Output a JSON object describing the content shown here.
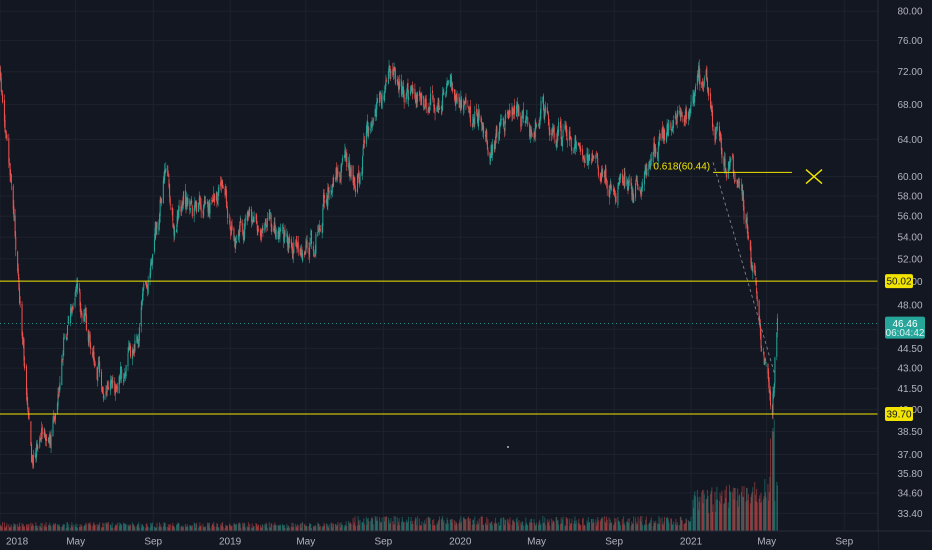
{
  "chart_data": {
    "type": "candlestick",
    "price_axis": {
      "scale": "log",
      "ticks": [
        80.0,
        76.0,
        72.0,
        68.0,
        64.0,
        60.0,
        58.0,
        56.0,
        54.0,
        52.0,
        50.0,
        48.0,
        46.0,
        44.5,
        43.0,
        41.5,
        40.0,
        38.5,
        37.0,
        35.8,
        34.6,
        33.4
      ],
      "labels": [
        "80.00",
        "76.00",
        "72.00",
        "68.00",
        "64.00",
        "60.00",
        "58.00",
        "56.00",
        "54.00",
        "52.00",
        "50.00",
        "48.00",
        "46.00",
        "44.50",
        "43.00",
        "41.50",
        "40.00",
        "38.50",
        "37.00",
        "35.80",
        "34.60",
        "33.40"
      ],
      "range": [
        32.9,
        81.0
      ]
    },
    "time_axis": {
      "ticks": [
        "2018-01-01",
        "2018-05-01",
        "2018-09-01",
        "2019-01-01",
        "2019-05-01",
        "2019-09-01",
        "2020-01-01",
        "2020-05-01",
        "2020-09-01",
        "2021-01-01",
        "2021-05-01",
        "2021-09-01"
      ],
      "labels": [
        "2018",
        "May",
        "Sep",
        "2019",
        "May",
        "Sep",
        "2020",
        "May",
        "Sep",
        "2021",
        "May",
        "Sep"
      ],
      "range": [
        "2018-01-01",
        "2021-10-15"
      ]
    },
    "price_path": [
      [
        "2018-01-01",
        71.0
      ],
      [
        "2018-01-20",
        58.0
      ],
      [
        "2018-02-08",
        44.0
      ],
      [
        "2018-02-20",
        36.0
      ],
      [
        "2018-03-08",
        39.5
      ],
      [
        "2018-03-22",
        37.5
      ],
      [
        "2018-04-12",
        45.0
      ],
      [
        "2018-05-01",
        50.0
      ],
      [
        "2018-05-25",
        45.0
      ],
      [
        "2018-06-14",
        41.0
      ],
      [
        "2018-07-01",
        41.5
      ],
      [
        "2018-07-25",
        43.5
      ],
      [
        "2018-08-10",
        46.0
      ],
      [
        "2018-09-01",
        53.0
      ],
      [
        "2018-09-15",
        58.0
      ],
      [
        "2018-09-22",
        61.0
      ],
      [
        "2018-10-05",
        55.0
      ],
      [
        "2018-10-20",
        58.0
      ],
      [
        "2018-11-10",
        56.0
      ],
      [
        "2018-12-01",
        57.5
      ],
      [
        "2018-12-20",
        59.0
      ],
      [
        "2019-01-10",
        54.0
      ],
      [
        "2019-02-01",
        56.0
      ],
      [
        "2019-03-01",
        55.0
      ],
      [
        "2019-04-01",
        53.5
      ],
      [
        "2019-05-01",
        52.5
      ],
      [
        "2019-05-15",
        53.5
      ],
      [
        "2019-06-01",
        58.0
      ],
      [
        "2019-07-01",
        62.0
      ],
      [
        "2019-07-20",
        59.0
      ],
      [
        "2019-08-10",
        66.0
      ],
      [
        "2019-08-25",
        68.5
      ],
      [
        "2019-09-15",
        71.5
      ],
      [
        "2019-10-01",
        69.5
      ],
      [
        "2019-11-01",
        68.0
      ],
      [
        "2019-12-01",
        69.0
      ],
      [
        "2019-12-20",
        70.5
      ],
      [
        "2020-01-15",
        66.0
      ],
      [
        "2020-02-01",
        67.0
      ],
      [
        "2020-02-20",
        62.5
      ],
      [
        "2020-03-15",
        66.0
      ],
      [
        "2020-04-01",
        67.5
      ],
      [
        "2020-04-20",
        65.0
      ],
      [
        "2020-05-10",
        68.0
      ],
      [
        "2020-06-01",
        65.0
      ],
      [
        "2020-07-01",
        64.0
      ],
      [
        "2020-08-01",
        61.5
      ],
      [
        "2020-09-01",
        58.5
      ],
      [
        "2020-09-15",
        59.5
      ],
      [
        "2020-10-01",
        58.0
      ],
      [
        "2020-10-20",
        60.5
      ],
      [
        "2020-11-05",
        63.0
      ],
      [
        "2020-12-01",
        65.0
      ],
      [
        "2021-01-01",
        68.0
      ],
      [
        "2021-01-15",
        71.5
      ],
      [
        "2021-01-25",
        72.5
      ],
      [
        "2021-02-05",
        66.0
      ],
      [
        "2021-02-25",
        61.5
      ],
      [
        "2021-03-10",
        60.5
      ],
      [
        "2021-03-25",
        57.0
      ],
      [
        "2021-04-05",
        53.0
      ],
      [
        "2021-04-15",
        48.5
      ],
      [
        "2021-04-25",
        44.5
      ],
      [
        "2021-05-05",
        41.0
      ],
      [
        "2021-05-10",
        39.8
      ],
      [
        "2021-05-14",
        43.5
      ],
      [
        "2021-05-18",
        46.46
      ]
    ],
    "horizontal_levels": [
      {
        "price": 50.02,
        "label": "50.02",
        "color": "#f2e400"
      },
      {
        "price": 39.7,
        "label": "39.70",
        "color": "#f2e400"
      }
    ],
    "fib_level": {
      "text": "0.618(60.44)",
      "price": 60.44,
      "from": "2021-02-05",
      "to": "2021-06-10",
      "color": "#f2e400"
    },
    "fib_trend_line": {
      "from": [
        "2021-02-05",
        61.5
      ],
      "to": [
        "2021-05-14",
        42.5
      ]
    },
    "x_marker": {
      "date": "2021-07-15",
      "price": 60.0,
      "color": "#f2e400"
    },
    "current_price": {
      "value": 46.46,
      "label": "46.46",
      "countdown": "06:04:42",
      "color": "#26a69a"
    },
    "volume_peak": "2021-05-10",
    "colors": {
      "background": "#131722",
      "grid": "#1e222d",
      "up": "#26a69a",
      "down": "#ef5350",
      "level": "#f2e400",
      "axis_text": "#b2b5be"
    }
  }
}
